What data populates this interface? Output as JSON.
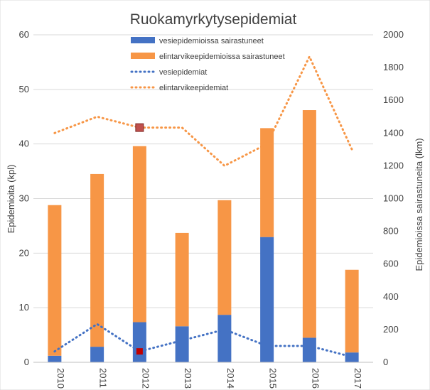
{
  "chart_data": {
    "type": "bar",
    "title": "Ruokamyrkytysepidemiat",
    "categories": [
      "2010",
      "2011",
      "2012",
      "2013",
      "2014",
      "2015",
      "2016",
      "2017"
    ],
    "y_left": {
      "label": "Epidemioita (kpl)",
      "lim": [
        0,
        60
      ],
      "ticks": [
        "0",
        "10",
        "20",
        "30",
        "40",
        "50",
        "60"
      ],
      "tick_values": [
        0,
        10,
        20,
        30,
        40,
        50,
        60
      ]
    },
    "y_right": {
      "label": "Epidemioissa sairastuneita (lkm)",
      "lim": [
        0,
        2000
      ],
      "ticks": [
        "0",
        "200",
        "400",
        "600",
        "800",
        "1000",
        "1200",
        "1400",
        "1600",
        "1800",
        "2000"
      ],
      "tick_values": [
        0,
        200,
        400,
        600,
        800,
        1000,
        1200,
        1400,
        1600,
        1800,
        2000
      ]
    },
    "grid": true,
    "legend_position": "top-center",
    "series": [
      {
        "name": "vesiepidemioissa sairastuneet",
        "kind": "bar",
        "axis": "right",
        "color": "#4472C4",
        "values": [
          40,
          95,
          245,
          220,
          290,
          765,
          150,
          60
        ]
      },
      {
        "name": "elintarvike­epidemioissa sairastuneet",
        "kind": "bar",
        "axis": "right",
        "color": "#F79646",
        "values": [
          920,
          1055,
          1075,
          570,
          700,
          665,
          1390,
          505
        ]
      },
      {
        "name": "vesiepidemiat",
        "kind": "line",
        "style": "dotted",
        "axis": "left",
        "color": "#4472C4",
        "values": [
          2,
          7,
          2,
          4,
          6,
          3,
          3,
          1
        ]
      },
      {
        "name": "elintarvikeepidemiat",
        "kind": "line",
        "style": "dotted",
        "axis": "left",
        "color": "#F79646",
        "values": [
          42,
          45,
          43,
          43,
          36,
          40,
          56,
          39
        ]
      }
    ],
    "highlighted_points": [
      {
        "series": "elintarvikeepidemiat",
        "category": "2012",
        "color": "#C0504D"
      },
      {
        "series": "vesiepidemiat",
        "category": "2012",
        "color": "#C00000"
      }
    ]
  }
}
